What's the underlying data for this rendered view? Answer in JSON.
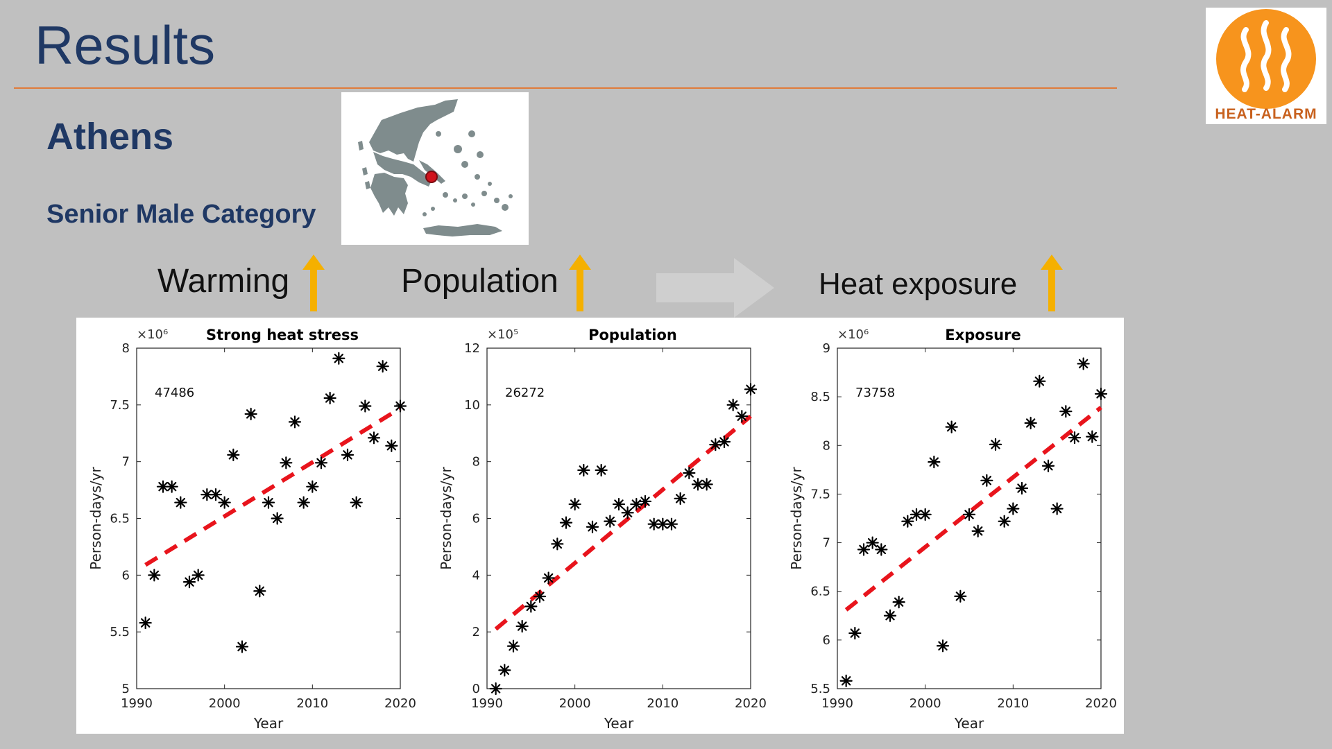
{
  "slide": {
    "title": "Results",
    "city": "Athens",
    "category": "Senior Male Category",
    "labels": {
      "warming": "Warming",
      "population": "Population",
      "exposure": "Heat exposure"
    }
  },
  "logo": {
    "text": "HEAT-ALARM",
    "color": "#f7941d"
  },
  "colors": {
    "title": "#1f3864",
    "rule": "#e07b39",
    "arrow": "#f5b000",
    "trend": "#e8141c"
  },
  "chart_data": [
    {
      "type": "scatter",
      "title": "Strong heat stress",
      "xlabel": "Year",
      "ylabel": "Person-days/yr",
      "multiplier": "×10⁶",
      "annotation": "47486",
      "xlim": [
        1990,
        2020
      ],
      "ylim": [
        5,
        8
      ],
      "xticks": [
        1990,
        2000,
        2010,
        2020
      ],
      "yticks": [
        5,
        5.5,
        6,
        6.5,
        7,
        7.5,
        8
      ],
      "ytick_labels": [
        "5",
        "5.5",
        "6",
        "6.5",
        "7",
        "7.5",
        "8"
      ],
      "x": [
        1991,
        1992,
        1993,
        1994,
        1995,
        1996,
        1997,
        1998,
        1999,
        2000,
        2001,
        2002,
        2003,
        2004,
        2005,
        2006,
        2007,
        2008,
        2009,
        2010,
        2011,
        2012,
        2013,
        2014,
        2015,
        2016,
        2017,
        2018,
        2019,
        2020
      ],
      "y": [
        5.58,
        6.0,
        6.78,
        6.78,
        6.64,
        5.94,
        6.0,
        6.71,
        6.71,
        6.64,
        7.06,
        5.37,
        7.42,
        5.86,
        6.64,
        6.5,
        6.99,
        7.35,
        6.64,
        6.78,
        6.99,
        7.56,
        7.91,
        7.06,
        6.64,
        7.49,
        7.21,
        7.84,
        7.14,
        7.49
      ],
      "trend": {
        "x": [
          1991,
          2020
        ],
        "y": [
          6.09,
          7.47
        ]
      }
    },
    {
      "type": "scatter",
      "title": "Population",
      "xlabel": "Year",
      "ylabel": "Person-days/yr",
      "multiplier": "×10⁵",
      "annotation": "26272",
      "xlim": [
        1990,
        2020
      ],
      "ylim": [
        0,
        12
      ],
      "xticks": [
        1990,
        2000,
        2010,
        2020
      ],
      "yticks": [
        0,
        2,
        4,
        6,
        8,
        10,
        12
      ],
      "ytick_labels": [
        "0",
        "2",
        "4",
        "6",
        "8",
        "10",
        "12"
      ],
      "x": [
        1991,
        1992,
        1993,
        1994,
        1995,
        1996,
        1997,
        1998,
        1999,
        2000,
        2001,
        2002,
        2003,
        2004,
        2005,
        2006,
        2007,
        2008,
        2009,
        2010,
        2011,
        2012,
        2013,
        2014,
        2015,
        2016,
        2017,
        2018,
        2019,
        2020
      ],
      "y": [
        0.0,
        0.65,
        1.5,
        2.2,
        2.9,
        3.25,
        3.9,
        5.1,
        5.85,
        6.5,
        7.7,
        5.7,
        7.7,
        5.9,
        6.5,
        6.2,
        6.5,
        6.6,
        5.8,
        5.8,
        5.8,
        6.7,
        7.6,
        7.2,
        7.2,
        8.6,
        8.7,
        10.0,
        9.6,
        10.55
      ],
      "trend": {
        "x": [
          1991,
          2020
        ],
        "y": [
          2.1,
          9.6
        ]
      }
    },
    {
      "type": "scatter",
      "title": "Exposure",
      "xlabel": "Year",
      "ylabel": "Person-days/yr",
      "multiplier": "×10⁶",
      "annotation": "73758",
      "xlim": [
        1990,
        2020
      ],
      "ylim": [
        5.5,
        9
      ],
      "xticks": [
        1990,
        2000,
        2010,
        2020
      ],
      "yticks": [
        5.5,
        6,
        6.5,
        7,
        7.5,
        8,
        8.5,
        9
      ],
      "ytick_labels": [
        "5.5",
        "6",
        "6.5",
        "7",
        "7.5",
        "8",
        "8.5",
        "9"
      ],
      "x": [
        1991,
        1992,
        1993,
        1994,
        1995,
        1996,
        1997,
        1998,
        1999,
        2000,
        2001,
        2002,
        2003,
        2004,
        2005,
        2006,
        2007,
        2008,
        2009,
        2010,
        2011,
        2012,
        2013,
        2014,
        2015,
        2016,
        2017,
        2018,
        2019,
        2020
      ],
      "y": [
        5.58,
        6.07,
        6.93,
        7.0,
        6.93,
        6.25,
        6.39,
        7.22,
        7.29,
        7.29,
        7.83,
        5.94,
        8.19,
        6.45,
        7.29,
        7.12,
        7.64,
        8.01,
        7.22,
        7.35,
        7.56,
        8.23,
        8.66,
        7.79,
        7.35,
        8.35,
        8.08,
        8.84,
        8.09,
        8.53
      ],
      "trend": {
        "x": [
          1991,
          2020
        ],
        "y": [
          6.31,
          8.39
        ]
      }
    }
  ]
}
